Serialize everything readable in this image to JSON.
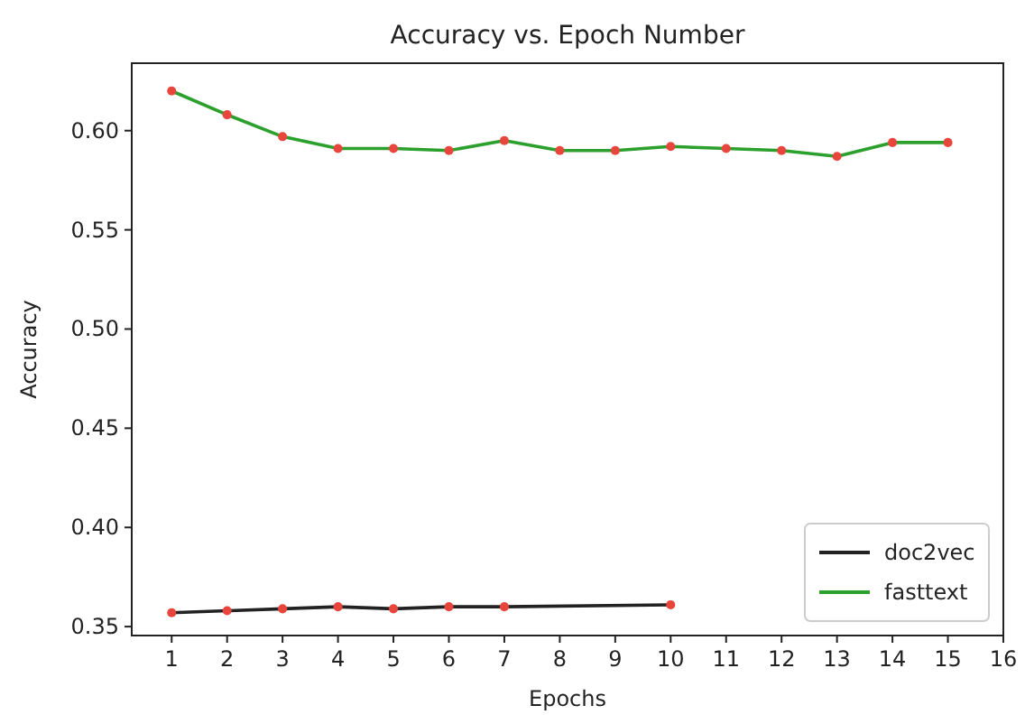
{
  "chart_data": {
    "type": "line",
    "title": "Accuracy vs. Epoch Number",
    "xlabel": "Epochs",
    "ylabel": "Accuracy",
    "xlim": [
      0.28,
      16
    ],
    "xticks": [
      1,
      2,
      3,
      4,
      5,
      6,
      7,
      8,
      9,
      10,
      11,
      12,
      13,
      14,
      15,
      16
    ],
    "ylim": [
      0.3455,
      0.634
    ],
    "yticks": [
      {
        "value": 0.35,
        "label": "0.35"
      },
      {
        "value": 0.4,
        "label": "0.40"
      },
      {
        "value": 0.45,
        "label": "0.45"
      },
      {
        "value": 0.5,
        "label": "0.50"
      },
      {
        "value": 0.55,
        "label": "0.55"
      },
      {
        "value": 0.6,
        "label": "0.60"
      }
    ],
    "grid": false,
    "legend": "bottom right",
    "series": [
      {
        "name": "doc2vec",
        "color": "#222222",
        "x": [
          1,
          2,
          3,
          4,
          5,
          6,
          7,
          10
        ],
        "values": [
          0.357,
          0.358,
          0.359,
          0.36,
          0.359,
          0.36,
          0.36,
          0.361
        ],
        "marker": "none"
      },
      {
        "name": "fasttext",
        "color": "#2ca02c",
        "x": [
          1,
          2,
          3,
          4,
          5,
          6,
          7,
          8,
          9,
          10,
          11,
          12,
          13,
          14,
          15
        ],
        "values": [
          0.62,
          0.608,
          0.597,
          0.591,
          0.591,
          0.59,
          0.595,
          0.59,
          0.59,
          0.592,
          0.591,
          0.59,
          0.587,
          0.594,
          0.594
        ],
        "marker": "none"
      },
      {
        "type": "scatter",
        "color": "#e8453c",
        "x": [
          1,
          2,
          3,
          4,
          5,
          6,
          7,
          10
        ],
        "values": [
          0.357,
          0.358,
          0.359,
          0.36,
          0.359,
          0.36,
          0.36,
          0.361
        ],
        "marker": "circle"
      },
      {
        "type": "scatter",
        "color": "#e8453c",
        "x": [
          1,
          2,
          3,
          4,
          5,
          6,
          7,
          8,
          9,
          10,
          11,
          12,
          13,
          14,
          15
        ],
        "values": [
          0.62,
          0.608,
          0.597,
          0.591,
          0.591,
          0.59,
          0.595,
          0.59,
          0.59,
          0.592,
          0.591,
          0.59,
          0.587,
          0.594,
          0.594
        ],
        "marker": "circle"
      }
    ]
  }
}
